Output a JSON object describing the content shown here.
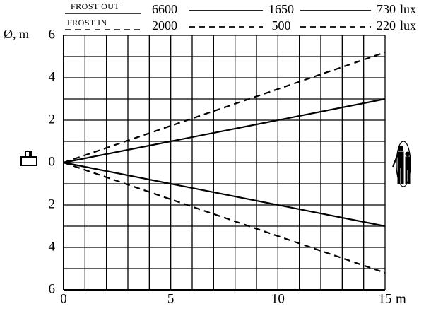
{
  "chart_data": {
    "type": "beam",
    "y_label": "Ø, m",
    "x_label": "m",
    "x": [
      0,
      15
    ],
    "xlim": [
      0,
      15
    ],
    "xticks": [
      0,
      5,
      10,
      15
    ],
    "ylim": [
      -6,
      6
    ],
    "yticks": [
      {
        "value": -6,
        "label": "6"
      },
      {
        "value": -4,
        "label": "4"
      },
      {
        "value": -2,
        "label": "2"
      },
      0,
      2,
      4,
      6
    ],
    "xgrid": [
      0,
      1,
      2,
      3,
      4,
      5,
      6,
      7,
      8,
      9,
      10,
      11,
      12,
      13,
      14,
      15
    ],
    "ygrid": [
      -6,
      -5,
      -4,
      -3,
      -2,
      -1,
      0,
      1,
      2,
      3,
      4,
      5,
      6
    ],
    "lux_unit": "lux",
    "series": [
      {
        "name": "FROST OUT",
        "color": "#000000",
        "dashed": false,
        "values": [
          0,
          3
        ],
        "lower_values": [
          0,
          -3
        ],
        "lux": [
          6600,
          1650,
          730
        ]
      },
      {
        "name": "FROST IN",
        "color": "#000000",
        "dashed": true,
        "values": [
          0,
          5.2
        ],
        "lower_values": [
          0,
          -5.2
        ],
        "lux": [
          2000,
          500,
          220
        ]
      }
    ]
  }
}
